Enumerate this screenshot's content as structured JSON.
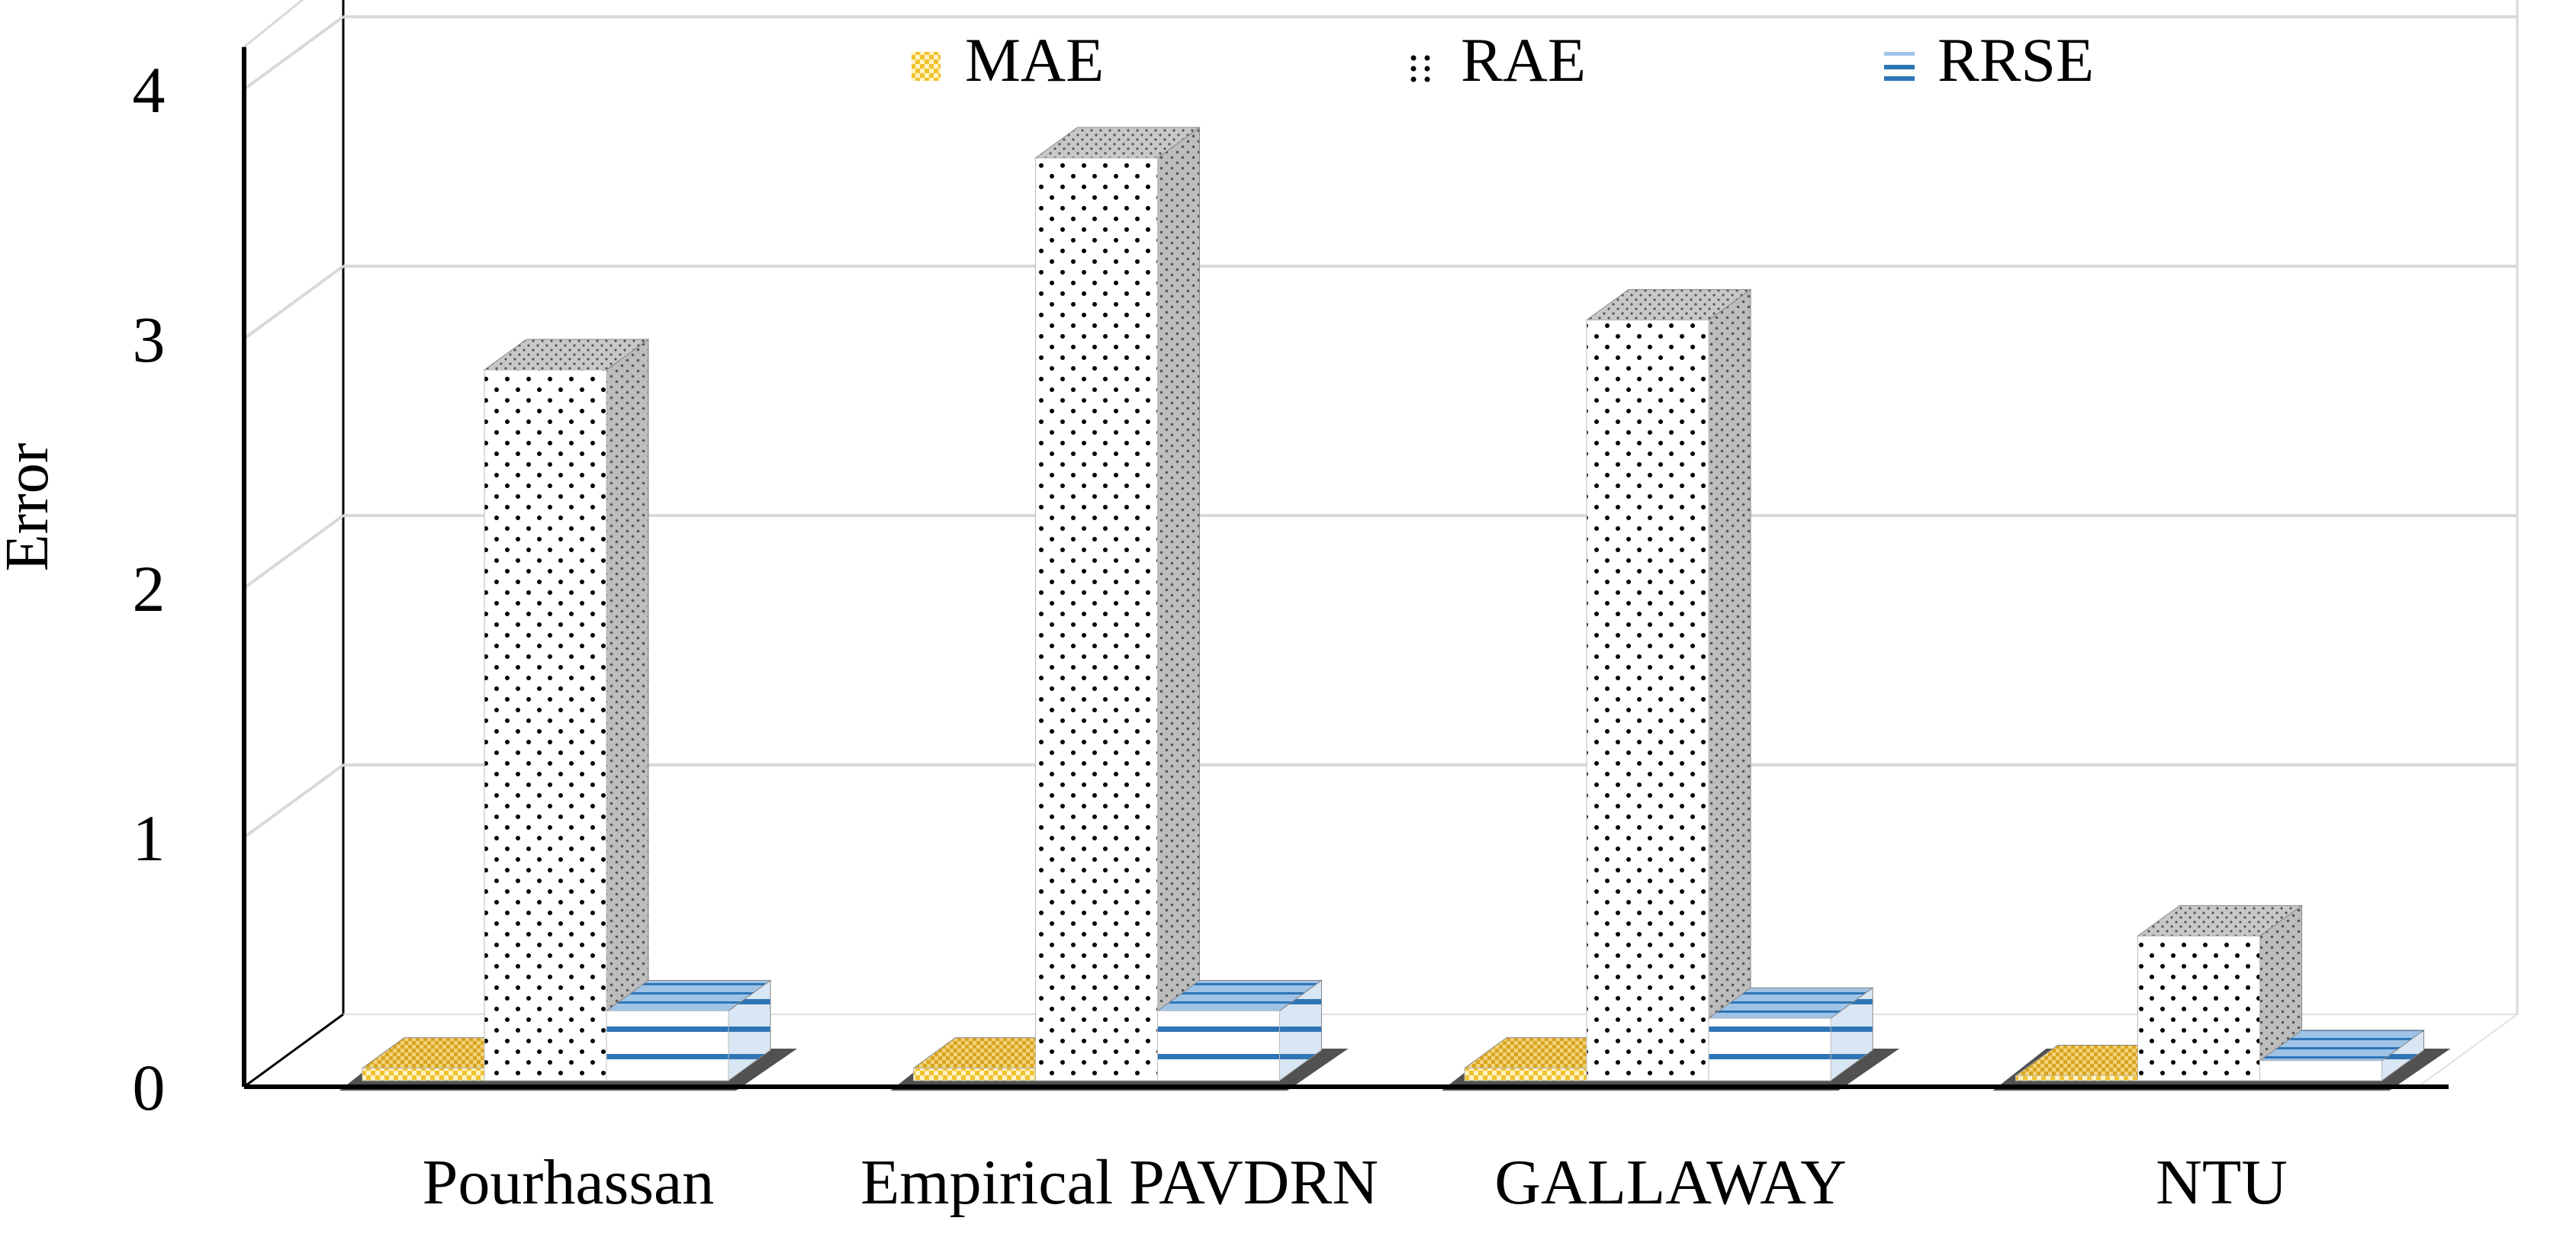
{
  "chart_data": {
    "type": "bar",
    "title": "",
    "xlabel": "",
    "ylabel": "Error",
    "ylim": [
      0,
      4
    ],
    "yticks": [
      "0",
      "1",
      "2",
      "3",
      "4"
    ],
    "grid": true,
    "legend_position": "top",
    "three_d": true,
    "categories": [
      "Pourhassan",
      "Empirical PAVDRN",
      "GALLAWAY",
      "NTU"
    ],
    "series": [
      {
        "name": "MAE",
        "values": [
          0.05,
          0.05,
          0.05,
          0.02
        ],
        "color": "#F2C12E",
        "pattern": "checker"
      },
      {
        "name": "RAE",
        "values": [
          2.85,
          3.7,
          3.05,
          0.58
        ],
        "color": "#000000",
        "pattern": "dots"
      },
      {
        "name": "RRSE",
        "values": [
          0.28,
          0.28,
          0.25,
          0.08
        ],
        "color": "#2E75B6",
        "pattern": "hlines"
      }
    ]
  }
}
